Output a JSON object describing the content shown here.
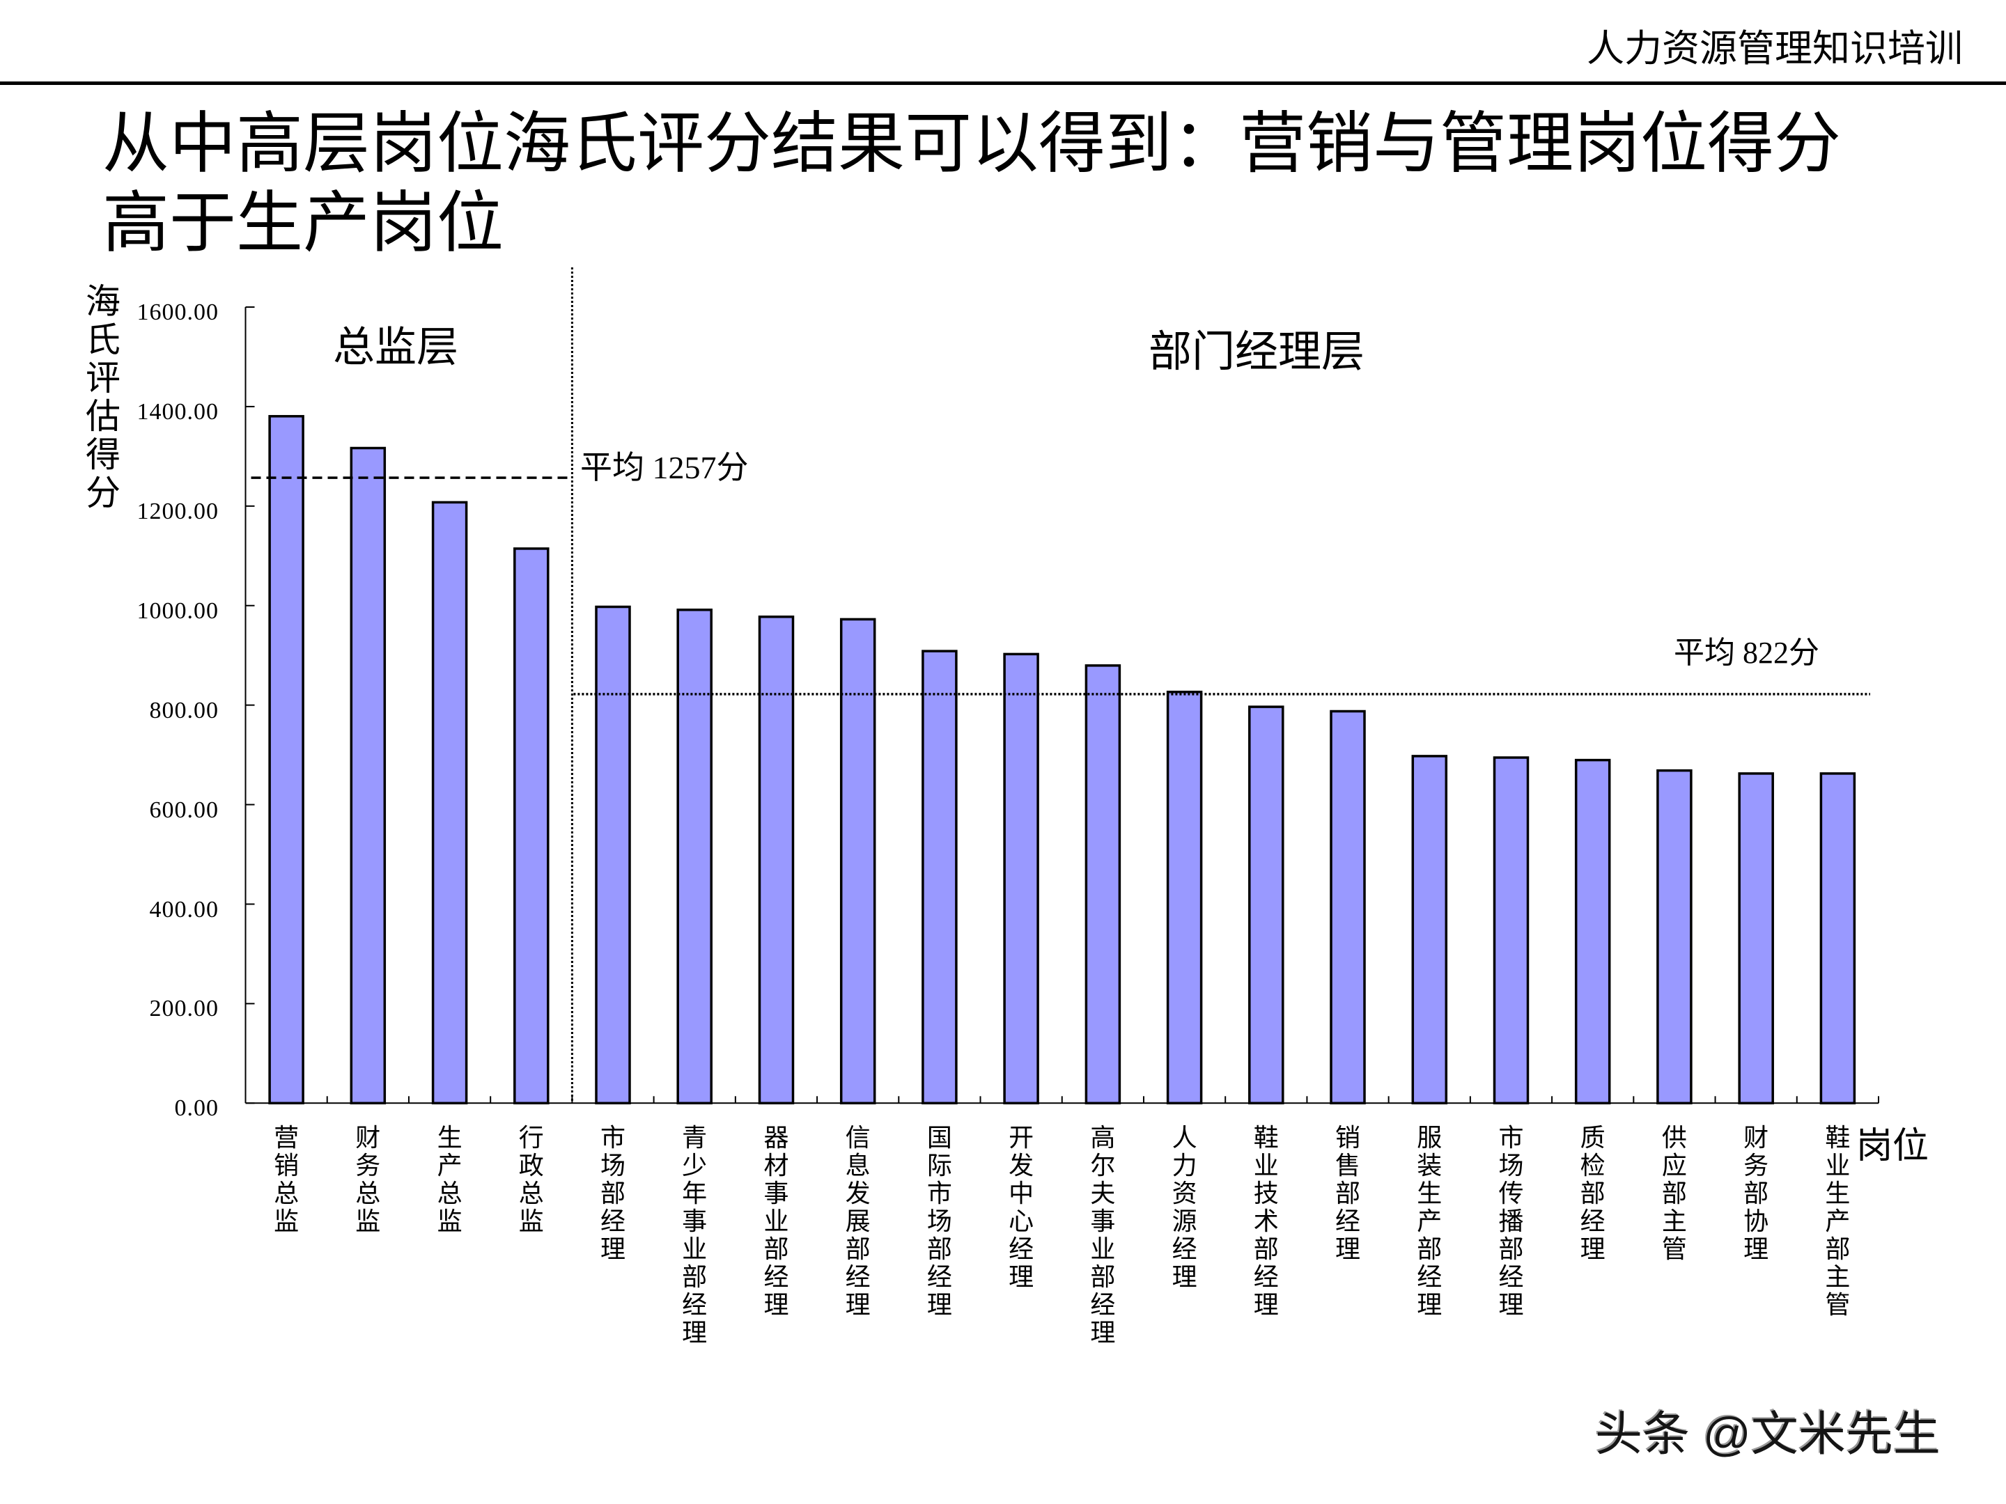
{
  "header": {
    "course_title": "人力资源管理知识培训"
  },
  "slide": {
    "title_line1": "从中高层岗位海氏评分结果可以得到：营销与管理岗位得分",
    "title_line2": "高于生产岗位"
  },
  "chart": {
    "y_axis_title": "海氏评估得分",
    "x_axis_title": "岗位",
    "director_group_label": "总监层",
    "manager_group_label": "部门经理层",
    "director_average_label": "平均 1257分",
    "manager_average_label": "平均 822分"
  },
  "chart_data": {
    "type": "bar",
    "title": "从中高层岗位海氏评分结果可以得到：营销与管理岗位得分高于生产岗位",
    "xlabel": "岗位",
    "ylabel": "海氏评估得分",
    "ylim": [
      0,
      1600
    ],
    "yticks": [
      0,
      200,
      400,
      600,
      800,
      1000,
      1200,
      1400,
      1600
    ],
    "ytick_labels": [
      "0.00",
      "200.00",
      "400.00",
      "600.00",
      "800.00",
      "1000.00",
      "1200.00",
      "1400.00",
      "1600.00"
    ],
    "grid": false,
    "legend": null,
    "categories": [
      "营销总监",
      "财务总监",
      "生产总监",
      "行政总监",
      "市场部经理",
      "青少年事业部经理",
      "器材事业部经理",
      "信息发展部经理",
      "国际市场部经理",
      "开发中心经理",
      "高尔夫事业部经理",
      "人力资源经理",
      "鞋业技术部经理",
      "销售部经理",
      "服装生产部经理",
      "市场传播部经理",
      "质检部经理",
      "供应部主管",
      "财务部协理",
      "鞋业生产部主管"
    ],
    "values": [
      1383,
      1319,
      1210,
      1117,
      1000,
      994,
      980,
      975,
      911,
      905,
      882,
      829,
      799,
      790,
      700,
      697,
      692,
      671,
      665,
      665
    ],
    "groups": [
      {
        "name": "总监层",
        "start": 0,
        "end": 3,
        "average": 1257,
        "average_label": "平均 1257分",
        "average_line": "dashed"
      },
      {
        "name": "部门经理层",
        "start": 4,
        "end": 19,
        "average": 822,
        "average_label": "平均 822分",
        "average_line": "dotted"
      }
    ],
    "annotations": [
      "总监层",
      "部门经理层",
      "平均 1257分",
      "平均 822分"
    ],
    "colors": {
      "bar_fill": "#9999FF",
      "bar_outline": "#000000",
      "axis": "#000000",
      "reference_lines": "#000000"
    }
  },
  "watermark": {
    "text": "头条 @文米先生"
  }
}
